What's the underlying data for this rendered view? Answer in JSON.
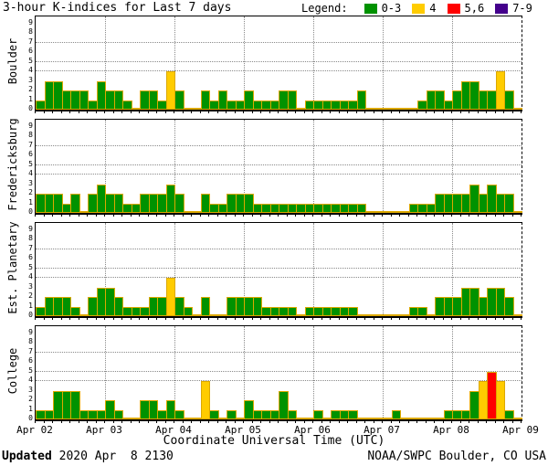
{
  "header": {
    "title": "3-hour K-indices for Last 7 days",
    "legend_label": "Legend:",
    "legend_items": [
      {
        "label": "0-3",
        "color": "#009200"
      },
      {
        "label": "4",
        "color": "#ffcc00"
      },
      {
        "label": "5,6",
        "color": "#ff0000"
      },
      {
        "label": "7-9",
        "color": "#44008c"
      }
    ]
  },
  "footer": {
    "updated_label": "Updated",
    "updated_value": " 2020 Apr  8 2130",
    "source": "NOAA/SWPC Boulder, CO USA"
  },
  "chart_data": {
    "type": "bar",
    "title": "3-hour K-indices for Last 7 days",
    "xlabel": "Coordinate Universal Time (UTC)",
    "x_tick_labels": [
      "Apr 02",
      "Apr 03",
      "Apr 04",
      "Apr 05",
      "Apr 06",
      "Apr 07",
      "Apr 08",
      "Apr 09"
    ],
    "ylim": [
      0,
      9
    ],
    "y_ticks": [
      0,
      1,
      2,
      3,
      4,
      5,
      6,
      7,
      8,
      9
    ],
    "hgrid_levels": [
      4,
      5,
      7
    ],
    "interval_hours": 3,
    "bars_per_day": 8,
    "bar_outline_color": "#dca800",
    "grid_color": "#8a8a8a",
    "color_map": {
      "k0_3": "#009200",
      "k4": "#ffcc00",
      "k5_6": "#ff0000",
      "k7_9": "#44008c"
    },
    "legend_position": "top-right",
    "panels": [
      {
        "label": "Boulder",
        "values": [
          1,
          3,
          3,
          2,
          2,
          2,
          1,
          3,
          2,
          2,
          1,
          0,
          2,
          2,
          1,
          4,
          2,
          0,
          0,
          2,
          1,
          2,
          1,
          1,
          2,
          1,
          1,
          1,
          2,
          2,
          0,
          1,
          1,
          1,
          1,
          1,
          1,
          2,
          0,
          0,
          0,
          0,
          0,
          0,
          1,
          2,
          2,
          1,
          2,
          3,
          3,
          2,
          2,
          4,
          2,
          0
        ]
      },
      {
        "label": "Fredericksburg",
        "values": [
          2,
          2,
          2,
          1,
          2,
          0,
          2,
          3,
          2,
          2,
          1,
          1,
          2,
          2,
          2,
          3,
          2,
          0,
          0,
          2,
          1,
          1,
          2,
          2,
          2,
          1,
          1,
          1,
          1,
          1,
          1,
          1,
          1,
          1,
          1,
          1,
          1,
          1,
          0,
          0,
          0,
          0,
          0,
          1,
          1,
          1,
          2,
          2,
          2,
          2,
          3,
          2,
          3,
          2,
          2,
          0
        ]
      },
      {
        "label": "Est. Planetary",
        "values": [
          1,
          2,
          2,
          2,
          1,
          0,
          2,
          3,
          3,
          2,
          1,
          1,
          1,
          2,
          2,
          4,
          2,
          1,
          0,
          2,
          0,
          0,
          2,
          2,
          2,
          2,
          1,
          1,
          1,
          1,
          0,
          1,
          1,
          1,
          1,
          1,
          1,
          0,
          0,
          0,
          0,
          0,
          0,
          1,
          1,
          0,
          2,
          2,
          2,
          3,
          3,
          2,
          3,
          3,
          2,
          0
        ]
      },
      {
        "label": "College",
        "values": [
          1,
          1,
          3,
          3,
          3,
          1,
          1,
          1,
          2,
          1,
          0,
          0,
          2,
          2,
          1,
          2,
          1,
          0,
          0,
          4,
          1,
          0,
          1,
          0,
          2,
          1,
          1,
          1,
          3,
          1,
          0,
          0,
          1,
          0,
          1,
          1,
          1,
          0,
          0,
          0,
          0,
          1,
          0,
          0,
          0,
          0,
          0,
          1,
          1,
          1,
          3,
          4,
          5,
          4,
          1,
          0
        ]
      }
    ]
  }
}
